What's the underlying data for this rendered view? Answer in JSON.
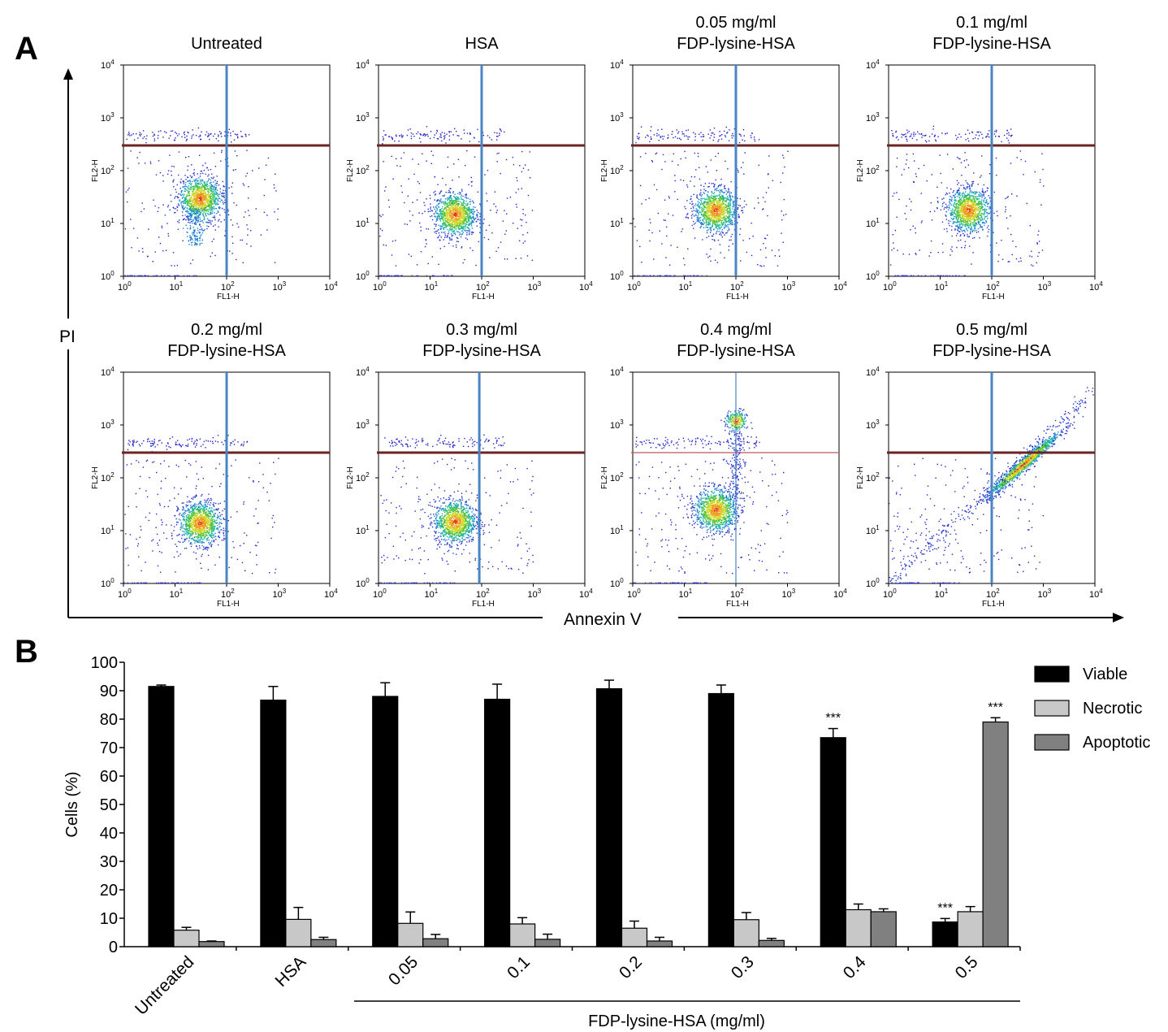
{
  "panel_a": {
    "letter": "A",
    "y_axis_label": "PI",
    "x_axis_label": "Annexin V",
    "plot_x_label": "FL1-H",
    "plot_y_label": "FL2-H",
    "tick_labels": [
      "10",
      "10",
      "10",
      "10",
      "10"
    ],
    "tick_exponents": [
      "0",
      "1",
      "2",
      "3",
      "4"
    ]
  },
  "panel_b": {
    "letter": "B"
  },
  "chart_data": [
    {
      "type": "scatter",
      "description_kind": "flow-cytometry-density-grid",
      "xlabel": "FL1-H",
      "ylabel": "FL2-H",
      "x_scale": "log",
      "y_scale": "log",
      "xlim": [
        1,
        10000
      ],
      "ylim": [
        1,
        10000
      ],
      "ticks": [
        "10^0",
        "10^1",
        "10^2",
        "10^3",
        "10^4"
      ],
      "panels": [
        {
          "title_line1": "Untreated",
          "title_line2": "",
          "vline": 100,
          "hline": 300,
          "hline_color": "#6b2424",
          "clusters": [
            {
              "x": 30,
              "y": 30
            }
          ],
          "secondary": "tail-down"
        },
        {
          "title_line1": "HSA",
          "title_line2": "",
          "vline": 100,
          "hline": 300,
          "hline_color": "#6b2424",
          "clusters": [
            {
              "x": 30,
              "y": 15
            }
          ],
          "secondary": "none"
        },
        {
          "title_line1": "0.05 mg/ml",
          "title_line2": "FDP-lysine-HSA",
          "vline": 100,
          "hline": 300,
          "hline_color": "#6b2424",
          "clusters": [
            {
              "x": 40,
              "y": 18
            }
          ],
          "secondary": "none"
        },
        {
          "title_line1": "0.1 mg/ml",
          "title_line2": "FDP-lysine-HSA",
          "vline": 100,
          "hline": 300,
          "hline_color": "#6b2424",
          "clusters": [
            {
              "x": 35,
              "y": 18
            }
          ],
          "secondary": "none"
        },
        {
          "title_line1": "0.2 mg/ml",
          "title_line2": "FDP-lysine-HSA",
          "vline": 100,
          "hline": 300,
          "hline_color": "#6b2424",
          "clusters": [
            {
              "x": 30,
              "y": 14
            }
          ],
          "secondary": "none"
        },
        {
          "title_line1": "0.3 mg/ml",
          "title_line2": "FDP-lysine-HSA",
          "vline": 90,
          "hline": 300,
          "hline_color": "#6b2424",
          "clusters": [
            {
              "x": 30,
              "y": 15
            }
          ],
          "secondary": "none"
        },
        {
          "title_line1": "0.4 mg/ml",
          "title_line2": "FDP-lysine-HSA",
          "vline": 100,
          "hline": 300,
          "hline_color": "#b35a5a",
          "clusters": [
            {
              "x": 40,
              "y": 25
            },
            {
              "x": 100,
              "y": 1200
            }
          ],
          "secondary": "upper-cluster"
        },
        {
          "title_line1": "0.5 mg/ml",
          "title_line2": "FDP-lysine-HSA",
          "vline": 100,
          "hline": 300,
          "hline_color": "#6b2424",
          "clusters": [
            {
              "x": 400,
              "y": 180
            }
          ],
          "secondary": "diagonal"
        }
      ]
    },
    {
      "type": "bar",
      "title": "",
      "xlabel": "",
      "ylabel": "Cells (%)",
      "ylim": [
        0,
        100
      ],
      "yticks": [
        0,
        10,
        20,
        30,
        40,
        50,
        60,
        70,
        80,
        90,
        100
      ],
      "categories": [
        "Untreated",
        "HSA",
        "0.05",
        "0.1",
        "0.2",
        "0.3",
        "0.4",
        "0.5"
      ],
      "group_label": "FDP-lysine-HSA (mg/ml)",
      "series": [
        {
          "name": "Viable",
          "color": "#000000",
          "values": [
            91.5,
            86.7,
            88.0,
            87.0,
            90.7,
            89.0,
            73.5,
            8.7
          ],
          "errors": [
            0.5,
            4.8,
            4.8,
            5.3,
            3.0,
            3.0,
            3.2,
            1.2
          ]
        },
        {
          "name": "Necrotic",
          "color": "#c8c8c8",
          "values": [
            5.8,
            9.6,
            8.2,
            8.0,
            6.5,
            9.5,
            13.0,
            12.3
          ],
          "errors": [
            1.0,
            4.2,
            4.0,
            2.2,
            2.5,
            2.5,
            2.0,
            1.8
          ]
        },
        {
          "name": "Apoptotic",
          "color": "#808080",
          "values": [
            1.8,
            2.5,
            2.8,
            2.6,
            2.0,
            2.2,
            12.3,
            79.0
          ],
          "errors": [
            0.2,
            0.8,
            1.5,
            1.8,
            1.3,
            0.7,
            1.0,
            1.5
          ]
        }
      ],
      "annotations": [
        {
          "category": "0.4",
          "series": "Viable",
          "text": "***"
        },
        {
          "category": "0.5",
          "series": "Viable",
          "text": "***"
        },
        {
          "category": "0.5",
          "series": "Apoptotic",
          "text": "***"
        }
      ],
      "legend_position": "top-right",
      "grid": false
    }
  ]
}
